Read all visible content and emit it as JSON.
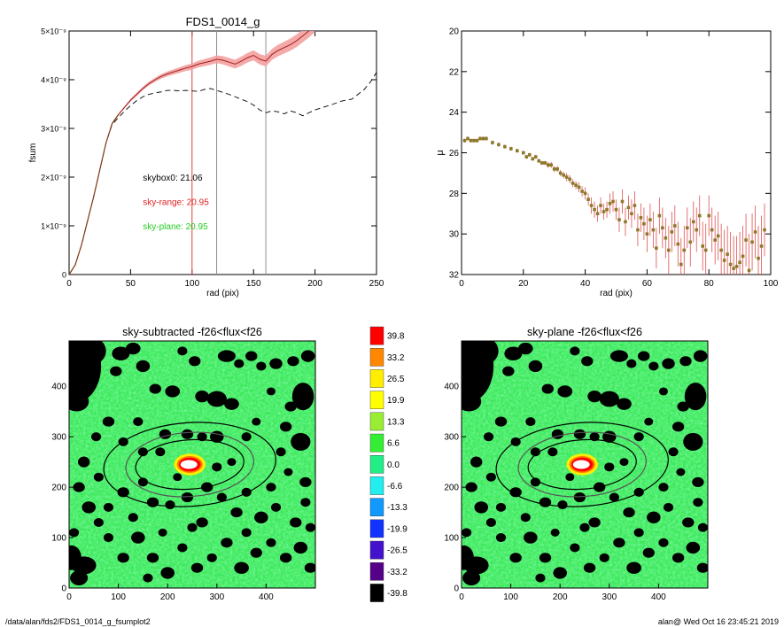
{
  "footer": {
    "path": "/data/alan/fds2/FDS1_0014_g_fsumplot2",
    "stamp": "alan@  Wed Oct 16 23:45:21 2019"
  },
  "chart_data": [
    {
      "id": "fsum",
      "type": "line",
      "title": "FDS1_0014_g",
      "xlabel": "rad (pix)",
      "ylabel": "fsum",
      "xlim": [
        0,
        250
      ],
      "ylim": [
        0,
        5e-09
      ],
      "xticks": [
        "0",
        "50",
        "100",
        "150",
        "200",
        "250"
      ],
      "yticks": [
        "0",
        "1×10⁻⁹",
        "2×10⁻⁹",
        "3×10⁻⁹",
        "4×10⁻⁹",
        "5×10⁻⁹"
      ],
      "vlines": [
        100,
        120,
        160
      ],
      "colors": {
        "sky_range": "#e02020",
        "band": "#f4a0a0",
        "sky_plane": "#22cc22",
        "skybox": "#000000",
        "vline_first": "#e04040",
        "vline_rest": "#909090"
      },
      "annotations": [
        {
          "label": "skybox0: 21.06",
          "color": "#000000",
          "x": 60,
          "y": 2e-09
        },
        {
          "label": "sky-range: 20.95",
          "color": "#e02020",
          "x": 60,
          "y": 1.5e-09
        },
        {
          "label": "sky-plane: 20.95",
          "color": "#22cc22",
          "x": 60,
          "y": 1e-09
        }
      ],
      "x": [
        0,
        5,
        10,
        15,
        20,
        25,
        30,
        35,
        40,
        45,
        50,
        55,
        60,
        65,
        70,
        75,
        80,
        85,
        90,
        95,
        100,
        105,
        110,
        115,
        120,
        125,
        130,
        135,
        140,
        145,
        150,
        155,
        160,
        165,
        170,
        175,
        180,
        185,
        190,
        195,
        200,
        205,
        210,
        215,
        220,
        225,
        230,
        235,
        240,
        245,
        250
      ],
      "series": [
        {
          "key": "sky_range",
          "values": [
            0,
            2e-10,
            6e-10,
            1.1e-09,
            1.6e-09,
            2.15e-09,
            2.7e-09,
            3.1e-09,
            3.28e-09,
            3.43e-09,
            3.58e-09,
            3.7e-09,
            3.82e-09,
            3.92e-09,
            4e-09,
            4.07e-09,
            4.12e-09,
            4.16e-09,
            4.2e-09,
            4.24e-09,
            4.27e-09,
            4.32e-09,
            4.35e-09,
            4.38e-09,
            4.42e-09,
            4.4e-09,
            4.36e-09,
            4.32e-09,
            4.38e-09,
            4.45e-09,
            4.5e-09,
            4.42e-09,
            4.38e-09,
            4.52e-09,
            4.6e-09,
            4.66e-09,
            4.72e-09,
            4.8e-09,
            4.9e-09,
            5e-09,
            5.12e-09,
            null,
            null,
            null,
            null,
            null,
            null,
            null,
            null,
            null,
            null
          ]
        },
        {
          "key": "skybox",
          "values": [
            0,
            2e-10,
            6e-10,
            1.1e-09,
            1.6e-09,
            2.15e-09,
            2.7e-09,
            3.08e-09,
            3.22e-09,
            3.35e-09,
            3.47e-09,
            3.57e-09,
            3.65e-09,
            3.7e-09,
            3.73e-09,
            3.75e-09,
            3.78e-09,
            3.78e-09,
            3.77e-09,
            3.78e-09,
            3.77e-09,
            3.76e-09,
            3.8e-09,
            3.82e-09,
            3.78e-09,
            3.74e-09,
            3.7e-09,
            3.65e-09,
            3.6e-09,
            3.55e-09,
            3.48e-09,
            3.38e-09,
            3.32e-09,
            3.36e-09,
            3.34e-09,
            3.3e-09,
            3.36e-09,
            3.32e-09,
            3.26e-09,
            3.32e-09,
            3.38e-09,
            3.42e-09,
            3.46e-09,
            3.5e-09,
            3.55e-09,
            3.58e-09,
            3.6e-09,
            3.7e-09,
            3.8e-09,
            3.95e-09,
            4.15e-09
          ]
        }
      ]
    },
    {
      "id": "mu",
      "type": "scatter",
      "xlabel": "rad (pix)",
      "ylabel": "μ",
      "xlim": [
        0,
        100
      ],
      "ylim": [
        32,
        20
      ],
      "xticks": [
        "0",
        "20",
        "40",
        "60",
        "80",
        "100"
      ],
      "yticks": [
        "20",
        "22",
        "24",
        "26",
        "28",
        "30",
        "32"
      ],
      "colors": {
        "point": "#8c7a2a",
        "error": "#e05050"
      },
      "x": [
        1,
        2,
        3,
        4,
        5,
        6,
        7,
        8,
        10,
        12,
        14,
        16,
        18,
        20,
        21,
        22,
        23,
        24,
        25,
        26,
        27,
        28,
        29,
        30,
        31,
        32,
        33,
        34,
        35,
        36,
        37,
        38,
        39,
        40,
        41,
        42,
        43,
        44,
        45,
        46,
        47,
        48,
        49,
        50,
        51,
        52,
        53,
        54,
        55,
        56,
        57,
        58,
        59,
        60,
        61,
        62,
        63,
        64,
        65,
        66,
        67,
        68,
        69,
        70,
        71,
        72,
        73,
        74,
        75,
        76,
        77,
        78,
        79,
        80,
        81,
        82,
        83,
        84,
        85,
        86,
        87,
        88,
        89,
        90,
        91,
        92,
        93,
        94,
        95,
        96,
        97,
        98
      ],
      "y": [
        25.4,
        25.3,
        25.4,
        25.4,
        25.4,
        25.3,
        25.3,
        25.3,
        25.5,
        25.6,
        25.7,
        25.8,
        25.9,
        26.0,
        26.2,
        26.1,
        26.3,
        26.2,
        26.4,
        26.5,
        26.5,
        26.6,
        26.6,
        26.8,
        26.8,
        27.0,
        27.1,
        27.2,
        27.3,
        27.5,
        27.6,
        27.7,
        27.9,
        28.0,
        28.3,
        28.6,
        28.8,
        29.0,
        28.6,
        28.9,
        28.8,
        28.5,
        28.4,
        28.8,
        29.3,
        28.4,
        29.4,
        28.7,
        29.0,
        28.6,
        29.8,
        29.2,
        29.5,
        30.0,
        29.3,
        29.8,
        30.7,
        29.1,
        29.7,
        30.2,
        30.8,
        29.9,
        29.6,
        30.5,
        31.5,
        30.8,
        29.7,
        30.4,
        29.4,
        29.8,
        29.1,
        30.6,
        30.8,
        29.1,
        29.8,
        30.3,
        30.1,
        30.8,
        31.3,
        31.0,
        31.5,
        31.7,
        31.6,
        31.4,
        31.1,
        30.3,
        31.8,
        30.4,
        29.9,
        31.2,
        30.6,
        29.8
      ],
      "err": [
        0.1,
        0.1,
        0.1,
        0.1,
        0.1,
        0.1,
        0.1,
        0.1,
        0.1,
        0.1,
        0.1,
        0.1,
        0.1,
        0.1,
        0.1,
        0.1,
        0.1,
        0.1,
        0.1,
        0.1,
        0.1,
        0.15,
        0.15,
        0.15,
        0.15,
        0.15,
        0.15,
        0.2,
        0.2,
        0.2,
        0.2,
        0.25,
        0.25,
        0.3,
        0.3,
        0.4,
        0.4,
        0.4,
        0.4,
        0.4,
        0.4,
        0.5,
        0.5,
        0.5,
        0.6,
        0.6,
        0.7,
        0.6,
        0.7,
        0.7,
        0.8,
        0.7,
        0.8,
        0.9,
        0.8,
        0.9,
        1.0,
        0.9,
        1.0,
        1.0,
        1.2,
        1.0,
        1.0,
        1.1,
        1.3,
        1.2,
        1.0,
        1.2,
        1.0,
        1.1,
        1.0,
        1.2,
        1.3,
        1.0,
        1.1,
        1.2,
        1.2,
        1.3,
        1.5,
        1.4,
        1.6,
        1.6,
        1.5,
        1.5,
        1.5,
        1.3,
        1.8,
        1.4,
        1.3,
        1.6,
        1.5,
        1.3
      ]
    },
    {
      "id": "map1",
      "type": "heatmap",
      "title": "sky-subtracted -f26<flux<f26",
      "xlim": [
        0,
        500
      ],
      "ylim": [
        0,
        490
      ],
      "xticks": [
        "0",
        "100",
        "200",
        "300",
        "400"
      ],
      "yticks": [
        "0",
        "100",
        "200",
        "300",
        "400"
      ]
    },
    {
      "id": "map2",
      "type": "heatmap",
      "title": "sky-plane -f26<flux<f26",
      "xlim": [
        0,
        500
      ],
      "ylim": [
        0,
        490
      ],
      "xticks": [
        "0",
        "100",
        "200",
        "300",
        "400"
      ],
      "yticks": [
        "0",
        "100",
        "200",
        "300",
        "400"
      ]
    },
    {
      "id": "colorbar",
      "type": "table",
      "labels": [
        "39.8",
        "33.2",
        "26.5",
        "19.9",
        "13.3",
        "6.6",
        "0.0",
        "-6.6",
        "-13.3",
        "-19.9",
        "-26.5",
        "-33.2",
        "-39.8"
      ],
      "colors": [
        "#ff0000",
        "#ff8800",
        "#ffee00",
        "#ffff00",
        "#99ee33",
        "#33ee33",
        "#22ee88",
        "#22eeee",
        "#1199ff",
        "#1133ff",
        "#4411cc",
        "#550088",
        "#000000"
      ]
    }
  ]
}
